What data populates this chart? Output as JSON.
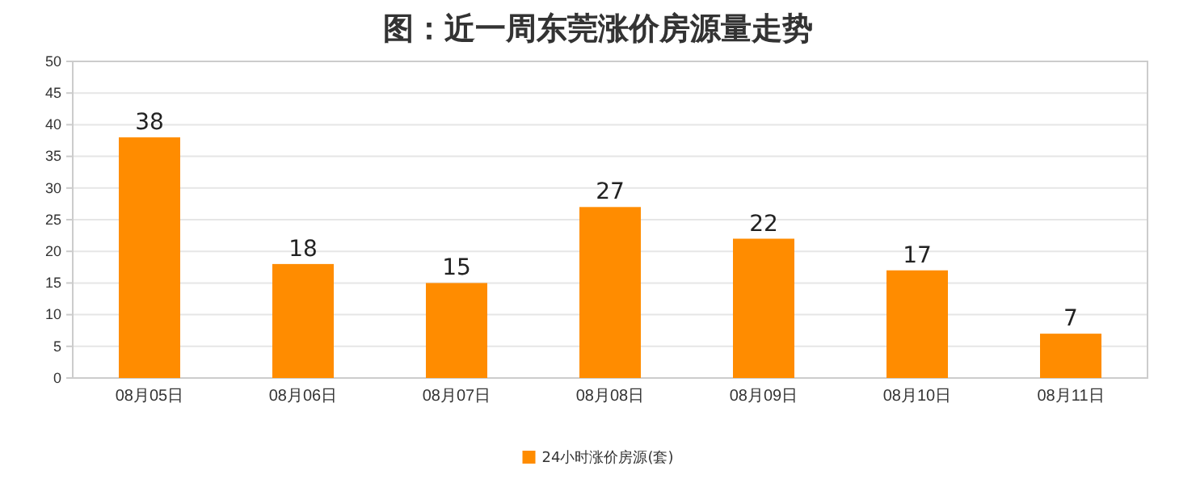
{
  "chart_data": {
    "type": "bar",
    "title": "图：近一周东莞涨价房源量走势",
    "categories": [
      "08月05日",
      "08月06日",
      "08月07日",
      "08月08日",
      "08月09日",
      "08月10日",
      "08月11日"
    ],
    "series": [
      {
        "name": "24小时涨价房源(套)",
        "color": "#ff8c00",
        "values": [
          38,
          18,
          15,
          27,
          22,
          17,
          7
        ]
      }
    ],
    "ylim": [
      0,
      50
    ],
    "yticks": [
      0,
      5,
      10,
      15,
      20,
      25,
      30,
      35,
      40,
      45,
      50
    ],
    "grid": "y",
    "legend": "bottom",
    "data_labels": true
  }
}
